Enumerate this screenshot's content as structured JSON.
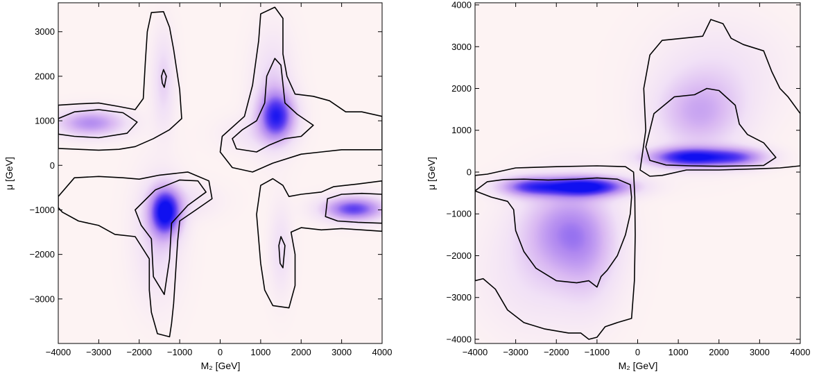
{
  "chart_data": [
    {
      "type": "heatmap",
      "subtype": "2D density with probability contours",
      "xlabel": "M₂ [GeV]",
      "ylabel": "μ [GeV]",
      "xlim": [
        -4000,
        4000
      ],
      "ylim": [
        -4000,
        3650
      ],
      "xticks": [
        -4000,
        -3000,
        -2000,
        -1000,
        0,
        1000,
        2000,
        3000,
        4000
      ],
      "yticks": [
        -3000,
        -2000,
        -1000,
        0,
        1000,
        2000,
        3000
      ],
      "grid": false,
      "colormap": [
        "#fdf3f3",
        "#f1e1f6",
        "#d9b8f2",
        "#b088f0",
        "#5a3cf0",
        "#1010f0"
      ],
      "density_peaks": [
        {
          "x": -1350,
          "y": -1050,
          "sx": 260,
          "sy": 360,
          "w": 1.0
        },
        {
          "x": -1550,
          "y": -1600,
          "sx": 380,
          "sy": 900,
          "w": 0.18
        },
        {
          "x": 1400,
          "y": 1100,
          "sx": 300,
          "sy": 360,
          "w": 0.8
        },
        {
          "x": 1300,
          "y": 1700,
          "sx": 320,
          "sy": 800,
          "w": 0.2
        },
        {
          "x": -3200,
          "y": 950,
          "sx": 550,
          "sy": 200,
          "w": 0.5
        },
        {
          "x": 3300,
          "y": -980,
          "sx": 500,
          "sy": 180,
          "w": 0.75
        },
        {
          "x": -1400,
          "y": 1900,
          "sx": 180,
          "sy": 700,
          "w": 0.2
        },
        {
          "x": 1500,
          "y": -1900,
          "sx": 180,
          "sy": 650,
          "w": 0.15
        },
        {
          "x": -800,
          "y": -800,
          "sx": 500,
          "sy": 250,
          "w": 0.1
        },
        {
          "x": 800,
          "y": 700,
          "sx": 500,
          "sy": 250,
          "w": 0.1
        }
      ],
      "contours": [
        [
          [
            -4000,
            1350
          ],
          [
            -3500,
            1380
          ],
          [
            -3000,
            1400
          ],
          [
            -2500,
            1320
          ],
          [
            -2100,
            1250
          ],
          [
            -1900,
            1500
          ],
          [
            -1850,
            2300
          ],
          [
            -1800,
            3000
          ],
          [
            -1700,
            3430
          ],
          [
            -1400,
            3450
          ],
          [
            -1250,
            3100
          ],
          [
            -1150,
            2600
          ],
          [
            -1000,
            1700
          ],
          [
            -950,
            1050
          ],
          [
            -1250,
            800
          ],
          [
            -1650,
            600
          ],
          [
            -2100,
            420
          ],
          [
            -2500,
            360
          ],
          [
            -3000,
            340
          ],
          [
            -3500,
            360
          ],
          [
            -4000,
            380
          ]
        ],
        [
          [
            -4000,
            1050
          ],
          [
            -3600,
            1200
          ],
          [
            -3000,
            1250
          ],
          [
            -2400,
            1180
          ],
          [
            -2050,
            970
          ],
          [
            -2300,
            720
          ],
          [
            -3000,
            620
          ],
          [
            -3600,
            650
          ],
          [
            -4000,
            700
          ]
        ],
        [
          [
            -1450,
            2000
          ],
          [
            -1400,
            2150
          ],
          [
            -1330,
            2000
          ],
          [
            -1380,
            1750
          ],
          [
            -1430,
            1850
          ]
        ],
        [
          [
            -4000,
            -700
          ],
          [
            -3600,
            -280
          ],
          [
            -3000,
            -250
          ],
          [
            -2400,
            -280
          ],
          [
            -2000,
            -310
          ],
          [
            -1500,
            -220
          ],
          [
            -800,
            -150
          ],
          [
            -280,
            -350
          ],
          [
            -200,
            -750
          ],
          [
            -600,
            -1000
          ],
          [
            -1000,
            -1250
          ],
          [
            -1050,
            -1700
          ],
          [
            -1100,
            -2400
          ],
          [
            -1150,
            -3100
          ],
          [
            -1200,
            -3550
          ],
          [
            -1250,
            -3850
          ],
          [
            -1550,
            -3780
          ],
          [
            -1700,
            -3300
          ],
          [
            -1750,
            -2800
          ],
          [
            -1750,
            -2100
          ],
          [
            -2100,
            -1600
          ],
          [
            -2600,
            -1550
          ],
          [
            -3000,
            -1350
          ],
          [
            -3500,
            -1250
          ],
          [
            -3900,
            -1050
          ],
          [
            -4000,
            -950
          ]
        ],
        [
          [
            -2100,
            -1000
          ],
          [
            -1600,
            -550
          ],
          [
            -1000,
            -330
          ],
          [
            -550,
            -350
          ],
          [
            -350,
            -600
          ],
          [
            -800,
            -900
          ],
          [
            -1200,
            -1300
          ],
          [
            -1250,
            -2100
          ],
          [
            -1380,
            -2900
          ],
          [
            -1650,
            -2500
          ],
          [
            -1700,
            -1650
          ],
          [
            -1950,
            -1350
          ]
        ],
        [
          [
            1000,
            3400
          ],
          [
            1350,
            3550
          ],
          [
            1550,
            3300
          ],
          [
            1550,
            2500
          ],
          [
            1650,
            2000
          ],
          [
            1850,
            1600
          ],
          [
            2300,
            1550
          ],
          [
            2700,
            1450
          ],
          [
            3100,
            1200
          ],
          [
            3500,
            1200
          ],
          [
            4000,
            1100
          ],
          [
            4000,
            350
          ],
          [
            3500,
            350
          ],
          [
            3000,
            350
          ],
          [
            2500,
            300
          ],
          [
            2000,
            250
          ],
          [
            1300,
            50
          ],
          [
            800,
            -150
          ],
          [
            300,
            -50
          ],
          [
            0,
            300
          ],
          [
            50,
            650
          ],
          [
            600,
            1100
          ],
          [
            800,
            1800
          ],
          [
            950,
            2800
          ]
        ],
        [
          [
            1150,
            2000
          ],
          [
            1350,
            2400
          ],
          [
            1500,
            2250
          ],
          [
            1600,
            1400
          ],
          [
            1900,
            1150
          ],
          [
            2300,
            900
          ],
          [
            2000,
            650
          ],
          [
            1600,
            600
          ],
          [
            1200,
            450
          ],
          [
            900,
            300
          ],
          [
            400,
            370
          ],
          [
            300,
            600
          ],
          [
            550,
            800
          ],
          [
            900,
            1000
          ],
          [
            1100,
            1400
          ]
        ],
        [
          [
            4000,
            -350
          ],
          [
            3400,
            -420
          ],
          [
            2800,
            -480
          ],
          [
            2500,
            -600
          ],
          [
            2000,
            -650
          ],
          [
            1700,
            -700
          ],
          [
            1550,
            -450
          ],
          [
            1300,
            -300
          ],
          [
            1000,
            -450
          ],
          [
            900,
            -1100
          ],
          [
            1000,
            -2200
          ],
          [
            1100,
            -2800
          ],
          [
            1300,
            -3150
          ],
          [
            1700,
            -3200
          ],
          [
            1850,
            -2700
          ],
          [
            1850,
            -2000
          ],
          [
            1750,
            -1500
          ],
          [
            2000,
            -1400
          ],
          [
            2500,
            -1450
          ],
          [
            3000,
            -1420
          ],
          [
            3500,
            -1450
          ],
          [
            4000,
            -1480
          ]
        ],
        [
          [
            4000,
            -1300
          ],
          [
            3400,
            -1280
          ],
          [
            2900,
            -1250
          ],
          [
            2600,
            -1150
          ],
          [
            2650,
            -750
          ],
          [
            3000,
            -650
          ],
          [
            3500,
            -630
          ],
          [
            4000,
            -650
          ]
        ],
        [
          [
            1450,
            -1800
          ],
          [
            1500,
            -1600
          ],
          [
            1600,
            -1800
          ],
          [
            1550,
            -2300
          ],
          [
            1480,
            -2200
          ]
        ]
      ]
    },
    {
      "type": "heatmap",
      "subtype": "2D density with probability contours",
      "xlabel": "M₂ [GeV]",
      "ylabel": "μ [GeV]",
      "xlim": [
        -4000,
        4000
      ],
      "ylim": [
        -4100,
        4050
      ],
      "xticks": [
        -4000,
        -3000,
        -2000,
        -1000,
        0,
        1000,
        2000,
        3000,
        4000
      ],
      "yticks": [
        -4000,
        -3000,
        -2000,
        -1000,
        0,
        1000,
        2000,
        3000,
        4000
      ],
      "grid": false,
      "colormap": [
        "#fdf3f3",
        "#f1e1f6",
        "#d9b8f2",
        "#b088f0",
        "#5a3cf0",
        "#1010f0"
      ],
      "density_peaks": [
        {
          "x": -1300,
          "y": -350,
          "sx": 750,
          "sy": 160,
          "w": 1.0
        },
        {
          "x": -2700,
          "y": -350,
          "sx": 500,
          "sy": 160,
          "w": 0.6
        },
        {
          "x": -1800,
          "y": -1400,
          "sx": 700,
          "sy": 700,
          "w": 0.45
        },
        {
          "x": -2500,
          "y": -2500,
          "sx": 900,
          "sy": 900,
          "w": 0.12
        },
        {
          "x": -1200,
          "y": -2000,
          "sx": 500,
          "sy": 900,
          "w": 0.2
        },
        {
          "x": 1300,
          "y": 350,
          "sx": 700,
          "sy": 160,
          "w": 0.95
        },
        {
          "x": 2500,
          "y": 350,
          "sx": 500,
          "sy": 160,
          "w": 0.5
        },
        {
          "x": 1500,
          "y": 1400,
          "sx": 700,
          "sy": 600,
          "w": 0.35
        },
        {
          "x": 2000,
          "y": 2400,
          "sx": 1000,
          "sy": 800,
          "w": 0.12
        }
      ],
      "contours": [
        [
          [
            -4000,
            -2600
          ],
          [
            -3800,
            -2550
          ],
          [
            -3500,
            -2800
          ],
          [
            -3200,
            -3300
          ],
          [
            -2800,
            -3600
          ],
          [
            -2300,
            -3750
          ],
          [
            -1700,
            -3850
          ],
          [
            -1400,
            -3850
          ],
          [
            -1200,
            -4000
          ],
          [
            -1000,
            -3950
          ],
          [
            -800,
            -3700
          ],
          [
            -500,
            -3600
          ],
          [
            -150,
            -3500
          ],
          [
            -80,
            -2600
          ],
          [
            -60,
            -1500
          ],
          [
            -70,
            -600
          ],
          [
            -100,
            0
          ],
          [
            -300,
            130
          ],
          [
            -1000,
            150
          ],
          [
            -2000,
            130
          ],
          [
            -3000,
            100
          ],
          [
            -3700,
            -50
          ],
          [
            -4000,
            -80
          ]
        ],
        [
          [
            -4000,
            -450
          ],
          [
            -3700,
            -230
          ],
          [
            -3300,
            -180
          ],
          [
            -2800,
            -170
          ],
          [
            -2200,
            -190
          ],
          [
            -1500,
            -170
          ],
          [
            -1000,
            -140
          ],
          [
            -500,
            -170
          ],
          [
            -180,
            -300
          ],
          [
            -150,
            -600
          ],
          [
            -180,
            -1000
          ],
          [
            -300,
            -1500
          ],
          [
            -500,
            -2000
          ],
          [
            -750,
            -2350
          ],
          [
            -900,
            -2500
          ],
          [
            -1000,
            -2750
          ],
          [
            -1200,
            -2600
          ],
          [
            -1500,
            -2650
          ],
          [
            -2000,
            -2600
          ],
          [
            -2500,
            -2300
          ],
          [
            -2800,
            -1900
          ],
          [
            -3000,
            -1400
          ],
          [
            -3050,
            -900
          ],
          [
            -3200,
            -700
          ],
          [
            -3600,
            -600
          ]
        ],
        [
          [
            60,
            50
          ],
          [
            200,
            1000
          ],
          [
            150,
            2000
          ],
          [
            300,
            2800
          ],
          [
            600,
            3150
          ],
          [
            1100,
            3200
          ],
          [
            1600,
            3250
          ],
          [
            1800,
            3650
          ],
          [
            2100,
            3550
          ],
          [
            2300,
            3200
          ],
          [
            2600,
            3050
          ],
          [
            3100,
            2900
          ],
          [
            3300,
            2400
          ],
          [
            3500,
            2000
          ],
          [
            3700,
            1800
          ],
          [
            4000,
            1400
          ],
          [
            4000,
            150
          ],
          [
            3500,
            100
          ],
          [
            3000,
            80
          ],
          [
            2000,
            50
          ],
          [
            1200,
            50
          ],
          [
            600,
            -80
          ],
          [
            300,
            -100
          ]
        ],
        [
          [
            200,
            600
          ],
          [
            400,
            1400
          ],
          [
            900,
            1800
          ],
          [
            1400,
            1850
          ],
          [
            1700,
            2000
          ],
          [
            2000,
            1950
          ],
          [
            2400,
            1600
          ],
          [
            2500,
            1150
          ],
          [
            2700,
            900
          ],
          [
            3100,
            700
          ],
          [
            3400,
            350
          ],
          [
            3100,
            160
          ],
          [
            2700,
            150
          ],
          [
            2000,
            140
          ],
          [
            1300,
            150
          ],
          [
            700,
            170
          ],
          [
            300,
            280
          ]
        ]
      ]
    }
  ]
}
